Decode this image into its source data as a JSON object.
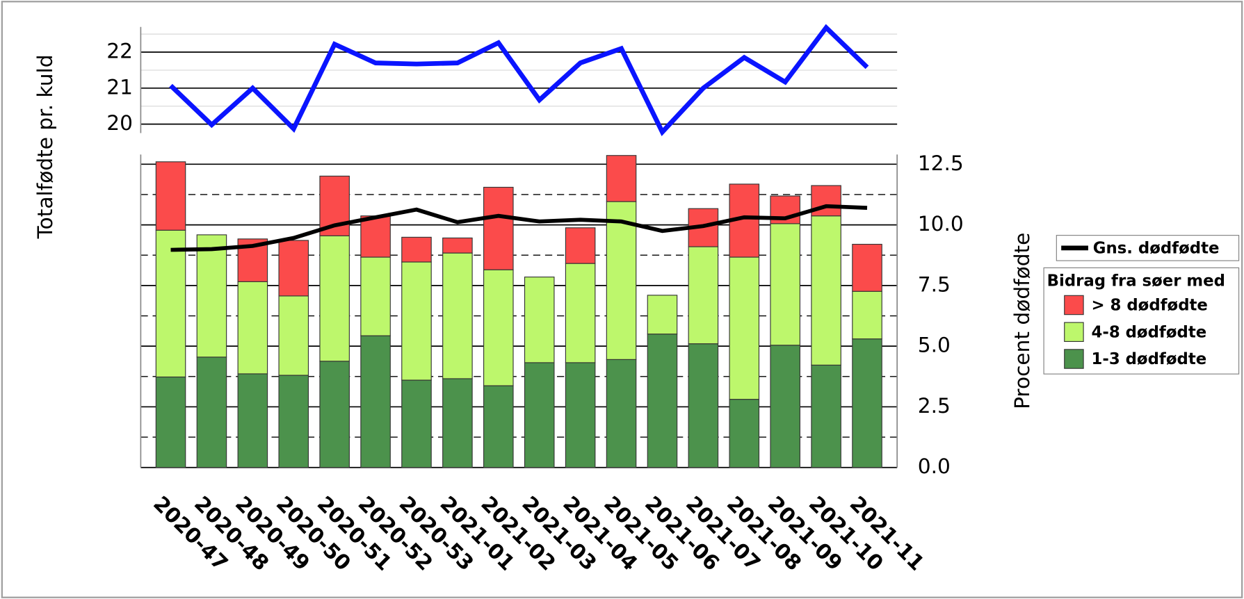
{
  "chart_data": [
    {
      "type": "line",
      "y_label": "Totalfødte pr. kuld",
      "color": "#0a14ff",
      "values": [
        21.07,
        19.98,
        21.0,
        19.87,
        22.22,
        21.7,
        21.67,
        21.7,
        22.26,
        20.67,
        21.7,
        22.1,
        19.78,
        21.0,
        21.85,
        21.17,
        22.68,
        21.58
      ],
      "ylim": [
        19.75,
        22.7
      ],
      "yticks": [
        20,
        21,
        22
      ],
      "minor_yticks": [
        20.5,
        21.5,
        22.5
      ],
      "grid": true
    },
    {
      "type": "bar",
      "stacked": true,
      "y_label": "Procent dødfødte",
      "legend_title": "Bidrag fra søer med",
      "legend": "right",
      "categories": [
        "2020-47",
        "2020-48",
        "2020-49",
        "2020-50",
        "2020-51",
        "2020-52",
        "2020-53",
        "2021-01",
        "2021-02",
        "2021-03",
        "2021-04",
        "2021-05",
        "2021-06",
        "2021-07",
        "2021-08",
        "2021-09",
        "2021-10",
        "2021-11"
      ],
      "series": [
        {
          "name": "1-3 dødfødte",
          "color": "#4c924c",
          "values": [
            3.73,
            4.55,
            3.86,
            3.8,
            4.38,
            5.43,
            3.6,
            3.66,
            3.37,
            4.32,
            4.32,
            4.45,
            5.5,
            5.1,
            2.81,
            5.04,
            4.22,
            5.3
          ]
        },
        {
          "name": "4-8 dødfødte",
          "color": "#bdf76c",
          "values": [
            6.05,
            5.04,
            3.8,
            3.27,
            5.17,
            3.24,
            4.87,
            5.18,
            4.78,
            3.53,
            4.09,
            6.51,
            1.6,
            4.0,
            5.86,
            5.01,
            6.15,
            1.96
          ]
        },
        {
          "name": "> 8 dødfødte",
          "color": "#fb4b4b",
          "values": [
            2.82,
            0,
            1.76,
            2.29,
            2.46,
            1.7,
            1.02,
            0.62,
            3.4,
            0,
            1.47,
            1.9,
            0,
            1.57,
            3.01,
            1.14,
            1.25,
            1.94
          ]
        }
      ],
      "line_series": {
        "name": "Gns. dødfødte",
        "color": "#000000",
        "values": [
          8.97,
          9.0,
          9.13,
          9.46,
          9.98,
          10.31,
          10.63,
          10.11,
          10.37,
          10.14,
          10.21,
          10.14,
          9.75,
          9.95,
          10.31,
          10.27,
          10.77,
          10.7
        ]
      },
      "ylim": [
        0,
        12.9
      ],
      "yticks": [
        {
          "value": 0,
          "label": "0.0"
        },
        2.5,
        {
          "value": 5,
          "label": "5.0"
        },
        7.5,
        {
          "value": 10,
          "label": "10.0"
        },
        12.5
      ],
      "minor_yticks": [
        1.25,
        3.75,
        6.25,
        8.75,
        11.25
      ],
      "grid": true
    }
  ]
}
